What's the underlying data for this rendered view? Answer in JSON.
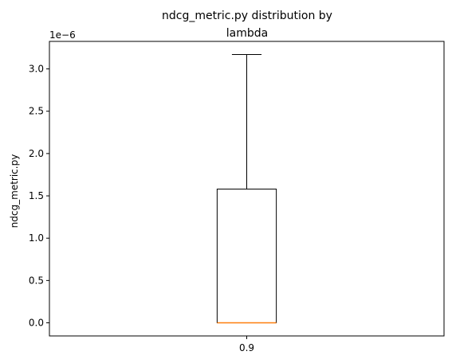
{
  "chart_data": {
    "type": "box",
    "title_lines": [
      "ndcg_metric.py distribution by",
      "lambda"
    ],
    "xlabel": "",
    "ylabel": "ndcg_metric.py",
    "y_offset_label": "1e−6",
    "ylim": [
      -1.55e-07,
      3.325e-06
    ],
    "y_ticks": [
      0.0,
      5e-07,
      1e-06,
      1.5e-06,
      2e-06,
      2.5e-06,
      3e-06
    ],
    "y_tick_labels": [
      "0.0",
      "0.5",
      "1.0",
      "1.5",
      "2.0",
      "2.5",
      "3.0"
    ],
    "categories": [
      "0.9"
    ],
    "boxes": [
      {
        "category": "0.9",
        "whisker_low": 0.0,
        "q1": 0.0,
        "median": 0.0,
        "q3": 1.58e-06,
        "whisker_high": 3.17e-06
      }
    ],
    "colors": {
      "box": "#000000",
      "median": "#ff7f0e"
    },
    "grid": false
  }
}
